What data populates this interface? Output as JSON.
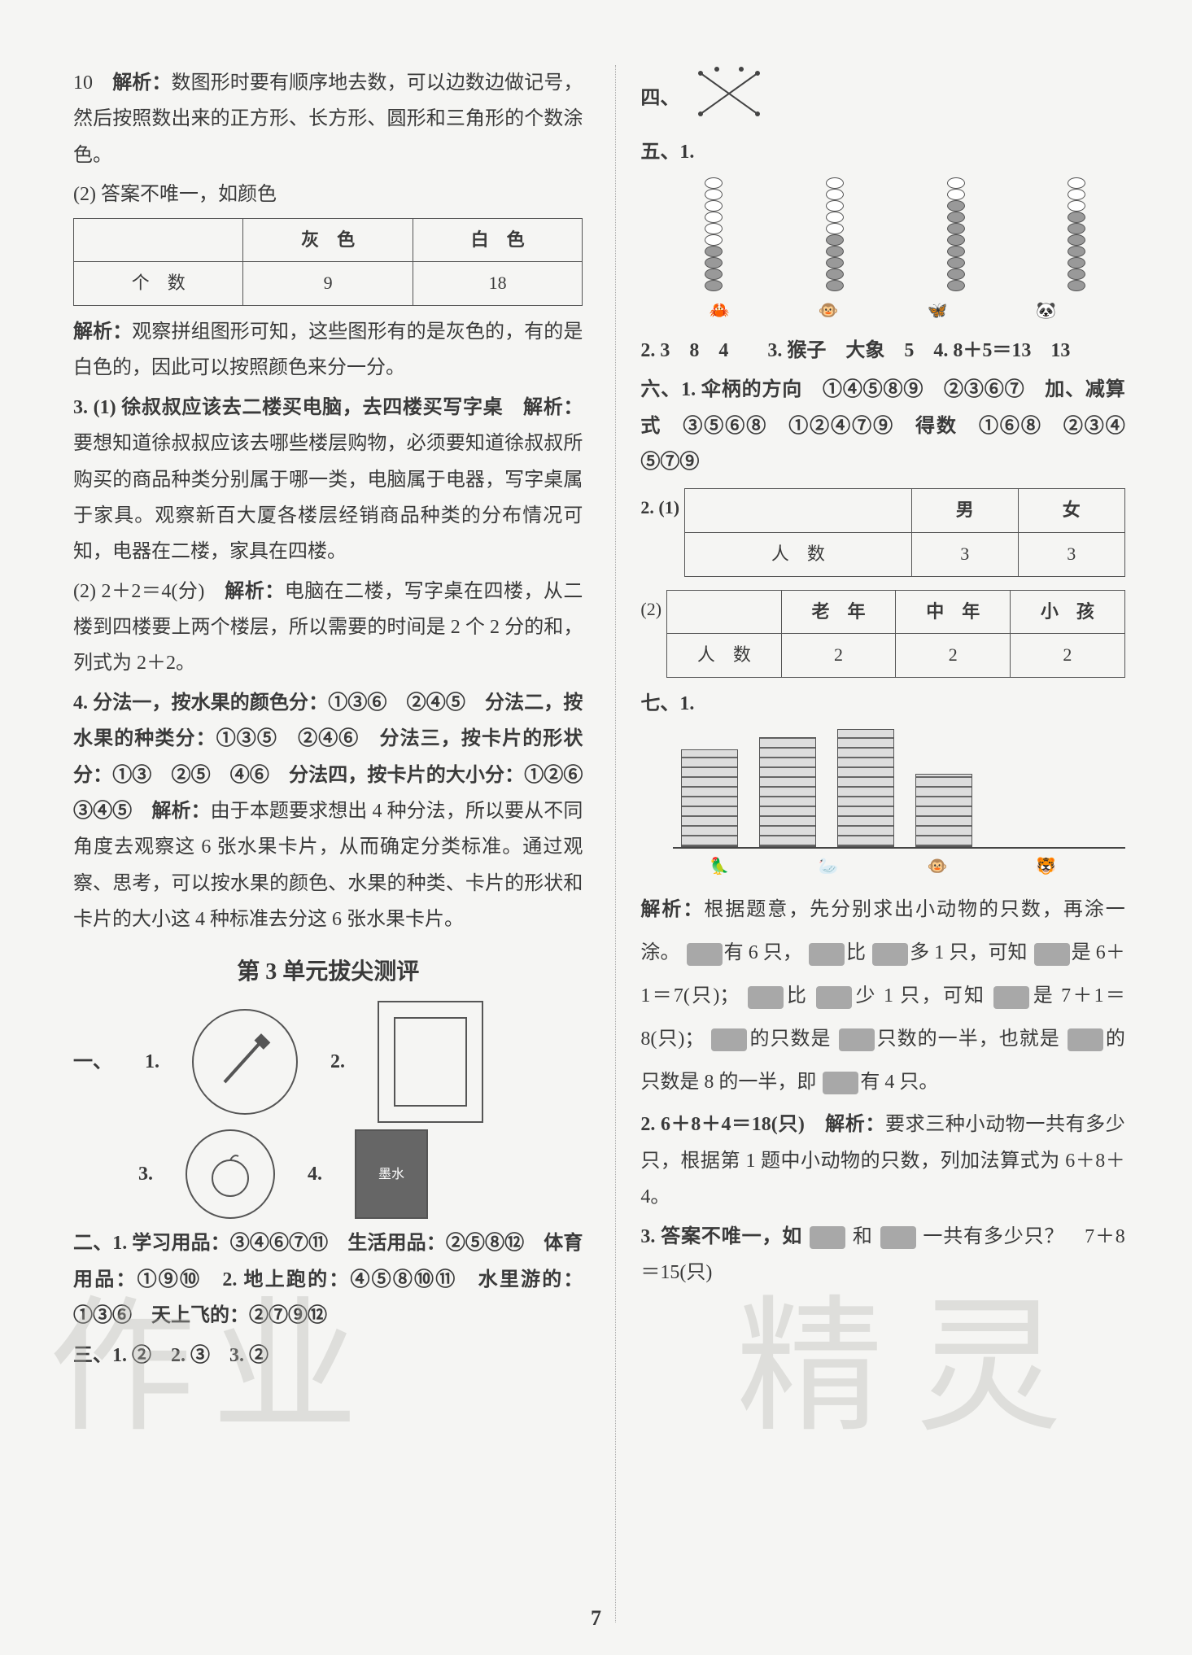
{
  "left": {
    "p10": "10",
    "p10_label": "解析：",
    "p10_text": "数图形时要有顺序地去数，可以边数边做记号，然后按照数出来的正方形、长方形、圆形和三角形的个数涂色。",
    "p2_prefix": "(2) 答案不唯一，如颜色",
    "table1": {
      "headers": [
        "",
        "灰　色",
        "白　色"
      ],
      "row_label": "个　数",
      "cells": [
        "9",
        "18"
      ]
    },
    "p2_analysis_label": "解析：",
    "p2_analysis": "观察拼组图形可知，这些图形有的是灰色的，有的是白色的，因此可以按照颜色来分一分。",
    "p3_1": "3. (1) 徐叔叔应该去二楼买电脑，去四楼买写字桌　",
    "p3_1_label": "解析：",
    "p3_1_text": "要想知道徐叔叔应该去哪些楼层购物，必须要知道徐叔叔所购买的商品种类分别属于哪一类，电脑属于电器，写字桌属于家具。观察新百大厦各楼层经销商品种类的分布情况可知，电器在二楼，家具在四楼。",
    "p3_2": "(2) 2＋2＝4(分)　",
    "p3_2_label": "解析：",
    "p3_2_text": "电脑在二楼，写字桌在四楼，从二楼到四楼要上两个楼层，所以需要的时间是 2 个 2 分的和，列式为 2＋2。",
    "p4_a": "4. 分法一，按水果的颜色分：①③⑥　②④⑤　分法二，按水果的种类分：①③⑤　②④⑥　分法三，按卡片的形状分：①③　②⑤　④⑥　分法四，按卡片的大小分：①②⑥　③④⑤　",
    "p4_label": "解析：",
    "p4_text": "由于本题要求想出 4 种分法，所以要从不同角度去观察这 6 张水果卡片，从而确定分类标准。通过观察、思考，可以按水果的颜色、水果的种类、卡片的形状和卡片的大小这 4 种标准去分这 6 张水果卡片。",
    "section_title": "第 3 单元拔尖测评",
    "yi": "一、",
    "yi_1": "1.",
    "yi_2": "2.",
    "yi_3": "3.",
    "yi_4": "4.",
    "er": "二、1. 学习用品：③④⑥⑦⑪　生活用品：②⑤⑧⑫　体育用品：①⑨⑩　2. 地上跑的：④⑤⑧⑩⑪　水里游的：①③⑥　天上飞的：②⑦⑨⑫",
    "san": "三、1. ②　2. ③　3. ②"
  },
  "right": {
    "si": "四、",
    "wu": "五、1.",
    "abacus_cols": [
      {
        "light": 6,
        "dark": 4
      },
      {
        "light": 5,
        "dark": 5
      },
      {
        "light": 2,
        "dark": 8
      },
      {
        "light": 3,
        "dark": 7
      }
    ],
    "animals1": [
      "🦀",
      "🐵",
      "🦋",
      "🐼"
    ],
    "wu2": "2. 3　8　4　　3. 猴子　大象　5　4. 8＋5＝13　13",
    "liu": "六、1. 伞柄的方向　①④⑤⑧⑨　②③⑥⑦　加、减算式　③⑤⑥⑧　①②④⑦⑨　得数　①⑥⑧　②③④　⑤⑦⑨",
    "liu2": "2. (1)",
    "liu2_table1": {
      "headers": [
        "",
        "男",
        "女"
      ],
      "row_label": "人　数",
      "cells": [
        "3",
        "3"
      ]
    },
    "liu2_2": "(2)",
    "liu2_table2": {
      "headers": [
        "",
        "老　年",
        "中　年",
        "小　孩"
      ],
      "row_label": "人　数",
      "cells": [
        "2",
        "2",
        "2"
      ]
    },
    "qi": "七、1.",
    "bars": [
      120,
      135,
      145,
      90
    ],
    "animals2": [
      "🦜",
      "🦢",
      "🐵",
      "🐯"
    ],
    "qi_label": "解析：",
    "qi_text_a": "根据题意，先分别求出小动物的只数，再涂一涂。",
    "qi_text_b": "有 6 只，",
    "qi_text_c": "比",
    "qi_text_d": "多 1 只，可知",
    "qi_text_e": "是 6＋1＝7(只)；",
    "qi_text_f": "比",
    "qi_text_g": "少 1 只，可知",
    "qi_text_h": "是 7＋1＝8(只)；",
    "qi_text_i": "的只数是",
    "qi_text_j": "只数的一半，也就是",
    "qi_text_k": "的只数是 8 的一半，即",
    "qi_text_l": "有 4 只。",
    "qi2": "2. 6＋8＋4＝18(只)　",
    "qi2_label": "解析：",
    "qi2_text": "要求三种小动物一共有多少只，根据第 1 题中小动物的只数，列加法算式为 6＋8＋4。",
    "qi3_a": "3. 答案不唯一，如",
    "qi3_b": "和",
    "qi3_c": "一共有多少只？　7＋8＝15(只)"
  },
  "page_number": "7",
  "watermark1": "作业",
  "watermark2": "精灵"
}
